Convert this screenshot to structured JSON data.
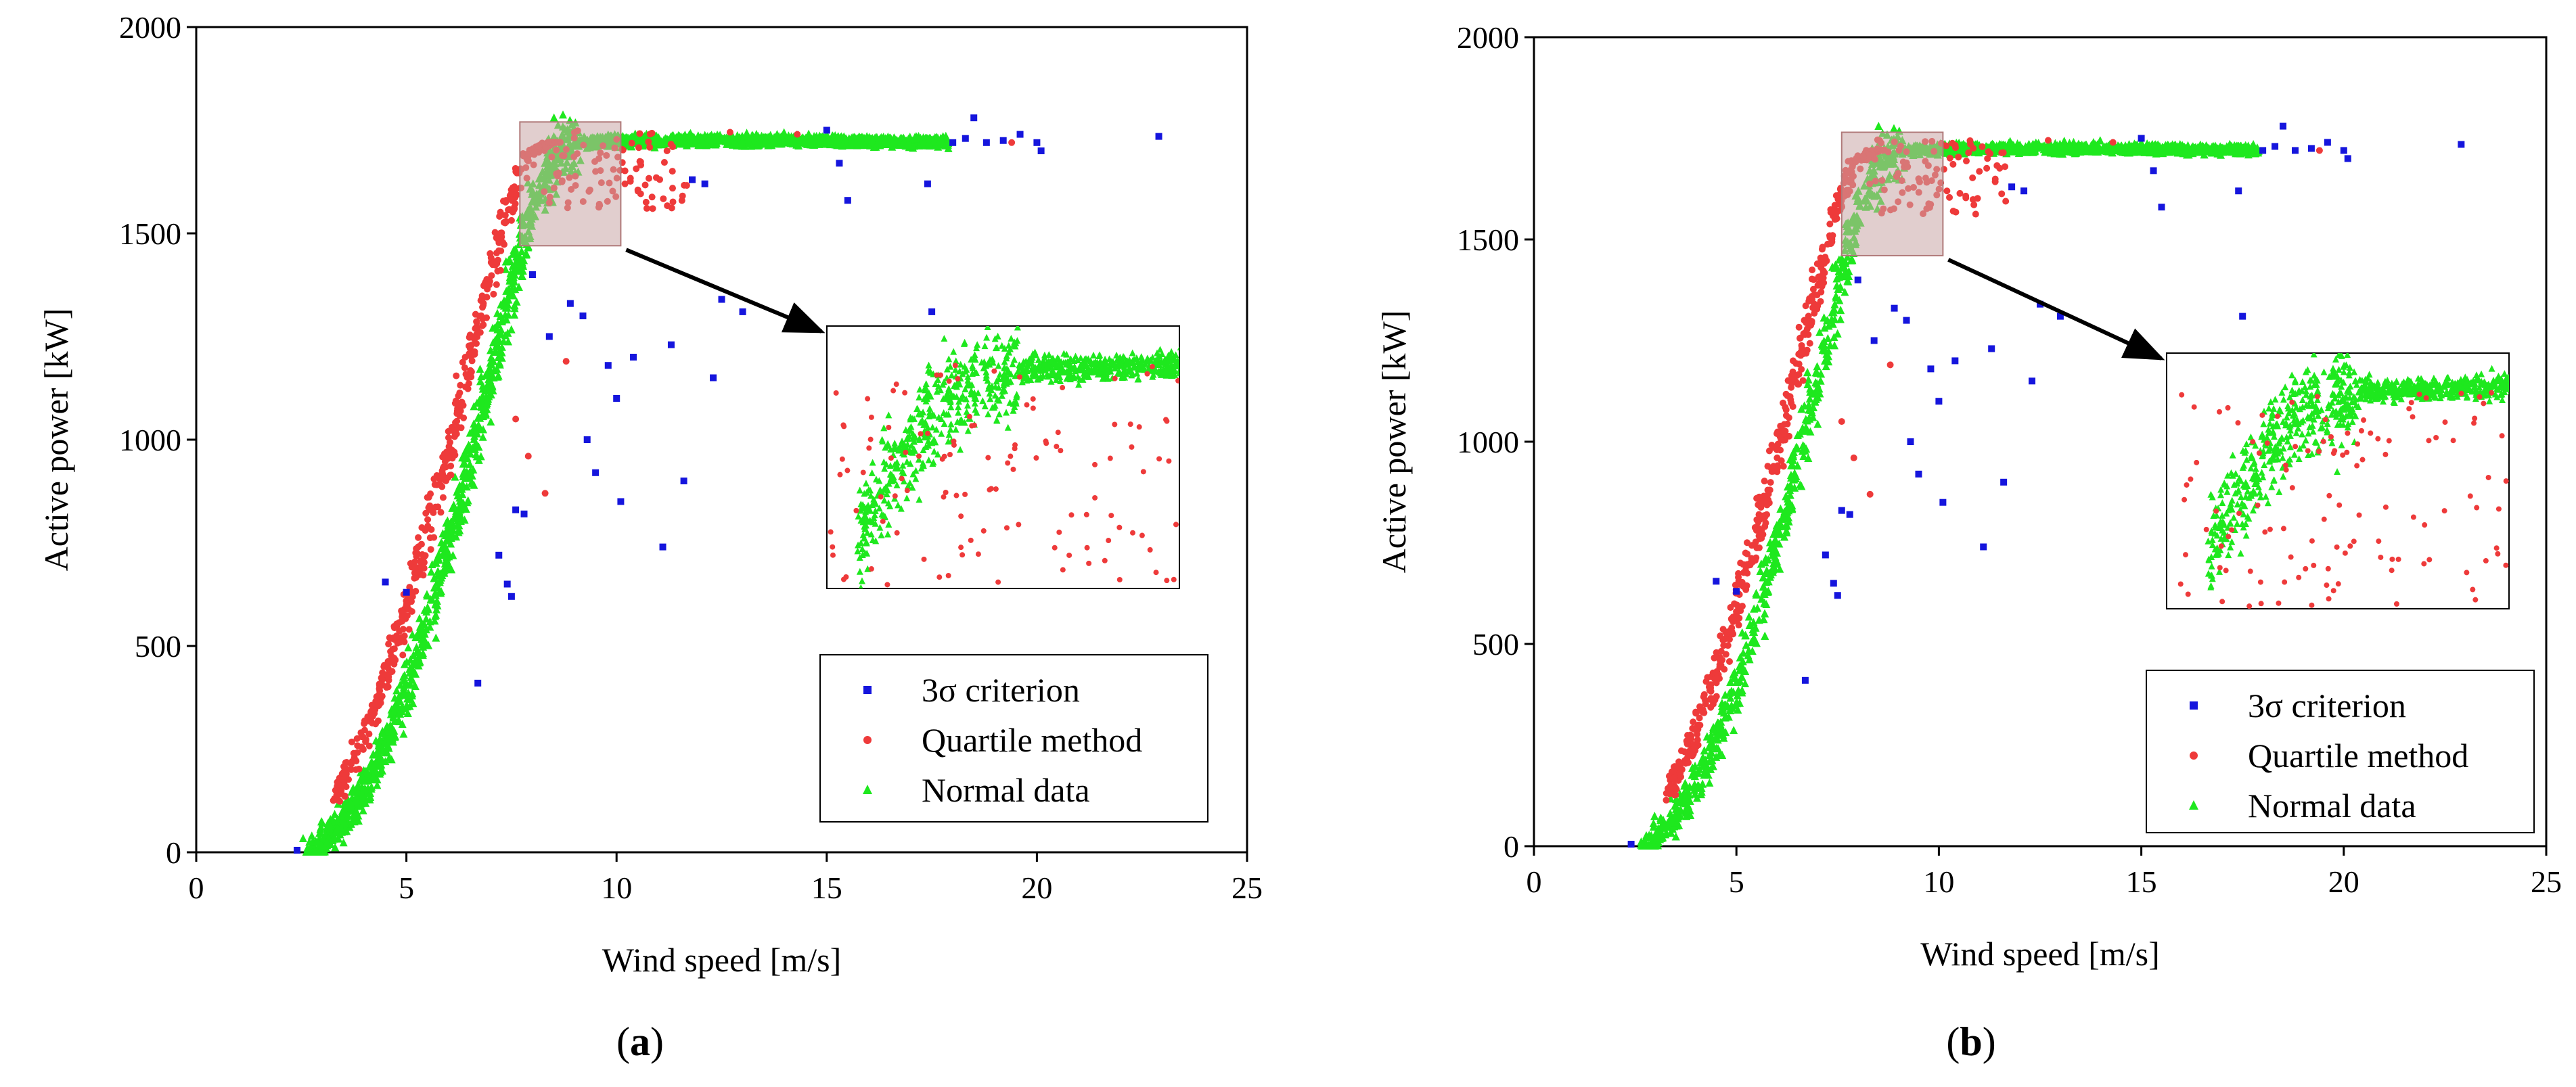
{
  "figure": {
    "panels": [
      {
        "id": "a",
        "caption_open": "(",
        "caption_letter": "a",
        "caption_close": ")"
      },
      {
        "id": "b",
        "caption_open": "(",
        "caption_letter": "b",
        "caption_close": ")"
      }
    ]
  },
  "colors": {
    "sigma": "#1515dd",
    "quartile": "#ee3a3a",
    "normal": "#1ee81e",
    "highlight_fill": "#c8a6a6",
    "arrow": "#000000",
    "axis": "#000000"
  },
  "chart_data": [
    {
      "type": "scatter",
      "panel": "a",
      "title": "",
      "xlabel": "Wind speed [m/s]",
      "ylabel": "Active power [kW]",
      "xlim": [
        0,
        25
      ],
      "ylim": [
        0,
        2000
      ],
      "xticks": [
        0,
        5,
        10,
        15,
        20,
        25
      ],
      "yticks": [
        0,
        500,
        1000,
        1500,
        2000
      ],
      "grid": false,
      "legend_position": "lower-right",
      "legend": [
        {
          "label": "3σ criterion",
          "marker": "square",
          "color": "#1515dd"
        },
        {
          "label": "Quartile method",
          "marker": "circle",
          "color": "#ee3a3a"
        },
        {
          "label": "Normal data",
          "marker": "triangle",
          "color": "#1ee81e"
        }
      ],
      "highlight_region": {
        "x": [
          7.7,
          10.1
        ],
        "y": [
          1470,
          1770
        ]
      },
      "inset": {
        "shows_region": true
      },
      "series": [
        {
          "name": "Normal data",
          "shape": "power curve band",
          "points": [
            [
              2.7,
              0
            ],
            [
              3.0,
              20
            ],
            [
              3.5,
              70
            ],
            [
              4.0,
              150
            ],
            [
              4.5,
              260
            ],
            [
              5.0,
              400
            ],
            [
              5.5,
              560
            ],
            [
              6.0,
              740
            ],
            [
              6.5,
              940
            ],
            [
              7.0,
              1150
            ],
            [
              7.5,
              1370
            ],
            [
              8.0,
              1560
            ],
            [
              8.5,
              1690
            ],
            [
              9.0,
              1720
            ],
            [
              10.0,
              1725
            ],
            [
              12.0,
              1725
            ],
            [
              15.0,
              1725
            ],
            [
              17.8,
              1720
            ]
          ]
        },
        {
          "name": "Quartile method",
          "points": [
            [
              4.2,
              330
            ],
            [
              4.6,
              520
            ],
            [
              5.1,
              700
            ],
            [
              5.5,
              860
            ],
            [
              6.0,
              1020
            ],
            [
              6.4,
              1200
            ],
            [
              7.6,
              1050
            ],
            [
              7.9,
              960
            ],
            [
              8.3,
              870
            ],
            [
              8.8,
              1190
            ],
            [
              9.5,
              1650
            ],
            [
              10.2,
              1620
            ],
            [
              11.2,
              1700
            ],
            [
              12.7,
              1745
            ],
            [
              14.3,
              1740
            ],
            [
              19.4,
              1720
            ]
          ]
        },
        {
          "name": "3σ criterion",
          "points": [
            [
              2.4,
              5
            ],
            [
              4.5,
              655
            ],
            [
              5.0,
              630
            ],
            [
              6.7,
              410
            ],
            [
              7.2,
              720
            ],
            [
              7.4,
              650
            ],
            [
              7.5,
              620
            ],
            [
              7.6,
              830
            ],
            [
              7.8,
              820
            ],
            [
              8.0,
              1400
            ],
            [
              8.4,
              1250
            ],
            [
              8.9,
              1330
            ],
            [
              9.2,
              1300
            ],
            [
              9.3,
              1000
            ],
            [
              9.5,
              920
            ],
            [
              9.8,
              1180
            ],
            [
              10.0,
              1100
            ],
            [
              10.1,
              850
            ],
            [
              10.4,
              1200
            ],
            [
              11.1,
              740
            ],
            [
              11.3,
              1230
            ],
            [
              11.6,
              900
            ],
            [
              12.3,
              1150
            ],
            [
              12.5,
              1340
            ],
            [
              13.0,
              1310
            ],
            [
              11.8,
              1630
            ],
            [
              12.1,
              1620
            ],
            [
              15.0,
              1750
            ],
            [
              15.3,
              1670
            ],
            [
              15.5,
              1580
            ],
            [
              17.4,
              1620
            ],
            [
              17.5,
              1310
            ],
            [
              18.0,
              1720
            ],
            [
              18.3,
              1730
            ],
            [
              18.5,
              1780
            ],
            [
              18.8,
              1720
            ],
            [
              19.2,
              1725
            ],
            [
              19.6,
              1740
            ],
            [
              20.0,
              1720
            ],
            [
              20.1,
              1700
            ],
            [
              22.9,
              1735
            ]
          ]
        }
      ]
    },
    {
      "type": "scatter",
      "panel": "b",
      "title": "",
      "xlabel": "Wind speed [m/s]",
      "ylabel": "Active power [kW]",
      "xlim": [
        0,
        25
      ],
      "ylim": [
        0,
        2000
      ],
      "xticks": [
        0,
        5,
        10,
        15,
        20,
        25
      ],
      "yticks": [
        0,
        500,
        1000,
        1500,
        2000
      ],
      "grid": false,
      "legend_position": "lower-right",
      "legend": [
        {
          "label": "3σ criterion",
          "marker": "square",
          "color": "#1515dd"
        },
        {
          "label": "Quartile method",
          "marker": "circle",
          "color": "#ee3a3a"
        },
        {
          "label": "Normal data",
          "marker": "triangle",
          "color": "#1ee81e"
        }
      ],
      "highlight_region": {
        "x": [
          7.6,
          10.1
        ],
        "y": [
          1460,
          1765
        ]
      },
      "inset": {
        "shows_region": true
      },
      "series": [
        {
          "name": "Normal data",
          "shape": "power curve band",
          "points": [
            [
              2.7,
              0
            ],
            [
              3.0,
              20
            ],
            [
              3.5,
              70
            ],
            [
              4.0,
              150
            ],
            [
              4.5,
              260
            ],
            [
              5.0,
              400
            ],
            [
              5.5,
              560
            ],
            [
              6.0,
              740
            ],
            [
              6.5,
              940
            ],
            [
              7.0,
              1150
            ],
            [
              7.5,
              1370
            ],
            [
              8.0,
              1560
            ],
            [
              8.5,
              1690
            ],
            [
              9.0,
              1720
            ],
            [
              10.0,
              1725
            ],
            [
              12.0,
              1725
            ],
            [
              15.0,
              1725
            ],
            [
              17.8,
              1720
            ]
          ]
        },
        {
          "name": "Quartile method",
          "points": [
            [
              4.2,
              330
            ],
            [
              4.6,
              520
            ],
            [
              5.1,
              700
            ],
            [
              5.5,
              860
            ],
            [
              6.0,
              1020
            ],
            [
              6.4,
              1200
            ],
            [
              7.6,
              1050
            ],
            [
              7.9,
              960
            ],
            [
              8.3,
              870
            ],
            [
              8.8,
              1190
            ],
            [
              9.5,
              1650
            ],
            [
              10.2,
              1620
            ],
            [
              11.2,
              1700
            ],
            [
              12.7,
              1745
            ],
            [
              14.3,
              1740
            ],
            [
              19.4,
              1720
            ]
          ]
        },
        {
          "name": "3σ criterion",
          "points": [
            [
              2.4,
              5
            ],
            [
              4.5,
              655
            ],
            [
              5.0,
              630
            ],
            [
              6.7,
              410
            ],
            [
              7.2,
              720
            ],
            [
              7.4,
              650
            ],
            [
              7.5,
              620
            ],
            [
              7.6,
              830
            ],
            [
              7.8,
              820
            ],
            [
              8.0,
              1400
            ],
            [
              8.4,
              1250
            ],
            [
              8.9,
              1330
            ],
            [
              9.2,
              1300
            ],
            [
              9.3,
              1000
            ],
            [
              9.5,
              920
            ],
            [
              9.8,
              1180
            ],
            [
              10.0,
              1100
            ],
            [
              10.1,
              850
            ],
            [
              10.4,
              1200
            ],
            [
              11.1,
              740
            ],
            [
              11.3,
              1230
            ],
            [
              11.6,
              900
            ],
            [
              12.3,
              1150
            ],
            [
              12.5,
              1340
            ],
            [
              13.0,
              1310
            ],
            [
              11.8,
              1630
            ],
            [
              12.1,
              1620
            ],
            [
              15.0,
              1750
            ],
            [
              15.3,
              1670
            ],
            [
              15.5,
              1580
            ],
            [
              17.4,
              1620
            ],
            [
              17.5,
              1310
            ],
            [
              18.0,
              1720
            ],
            [
              18.3,
              1730
            ],
            [
              18.5,
              1780
            ],
            [
              18.8,
              1720
            ],
            [
              19.2,
              1725
            ],
            [
              19.6,
              1740
            ],
            [
              20.0,
              1720
            ],
            [
              20.1,
              1700
            ],
            [
              22.9,
              1735
            ]
          ]
        }
      ]
    }
  ]
}
